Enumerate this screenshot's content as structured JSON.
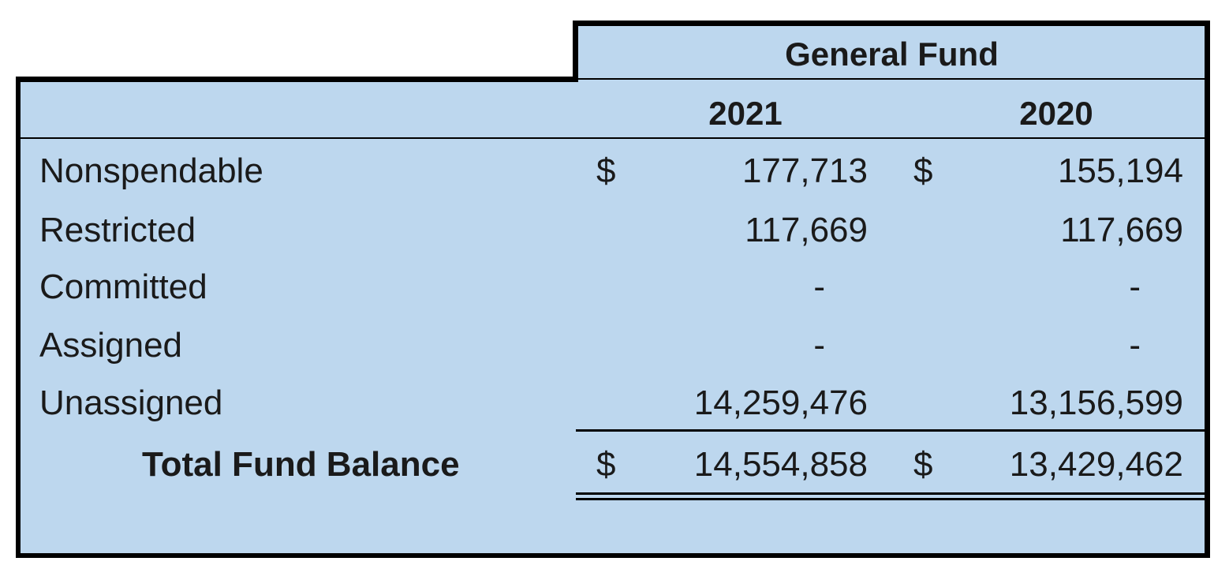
{
  "table": {
    "group_header": "General Fund",
    "year_headers": [
      "2021",
      "2020"
    ],
    "rows": [
      {
        "label": "Nonspendable",
        "cur_2021": "$",
        "v2021": "177,713",
        "cur_2020": "$",
        "v2020": "155,194"
      },
      {
        "label": "Restricted",
        "cur_2021": "",
        "v2021": "117,669",
        "cur_2020": "",
        "v2020": "117,669"
      },
      {
        "label": "Committed",
        "cur_2021": "",
        "v2021": "-",
        "cur_2020": "",
        "v2020": "-"
      },
      {
        "label": "Assigned",
        "cur_2021": "",
        "v2021": "-",
        "cur_2020": "",
        "v2020": "-"
      },
      {
        "label": "Unassigned",
        "cur_2021": "",
        "v2021": "14,259,476",
        "cur_2020": "",
        "v2020": "13,156,599"
      }
    ],
    "total": {
      "label": "Total Fund Balance",
      "cur_2021": "$",
      "v2021": "14,554,858",
      "cur_2020": "$",
      "v2020": "13,429,462"
    }
  },
  "colors": {
    "fill": "#bdd7ee",
    "border": "#000000",
    "text": "#1a1a1a"
  }
}
